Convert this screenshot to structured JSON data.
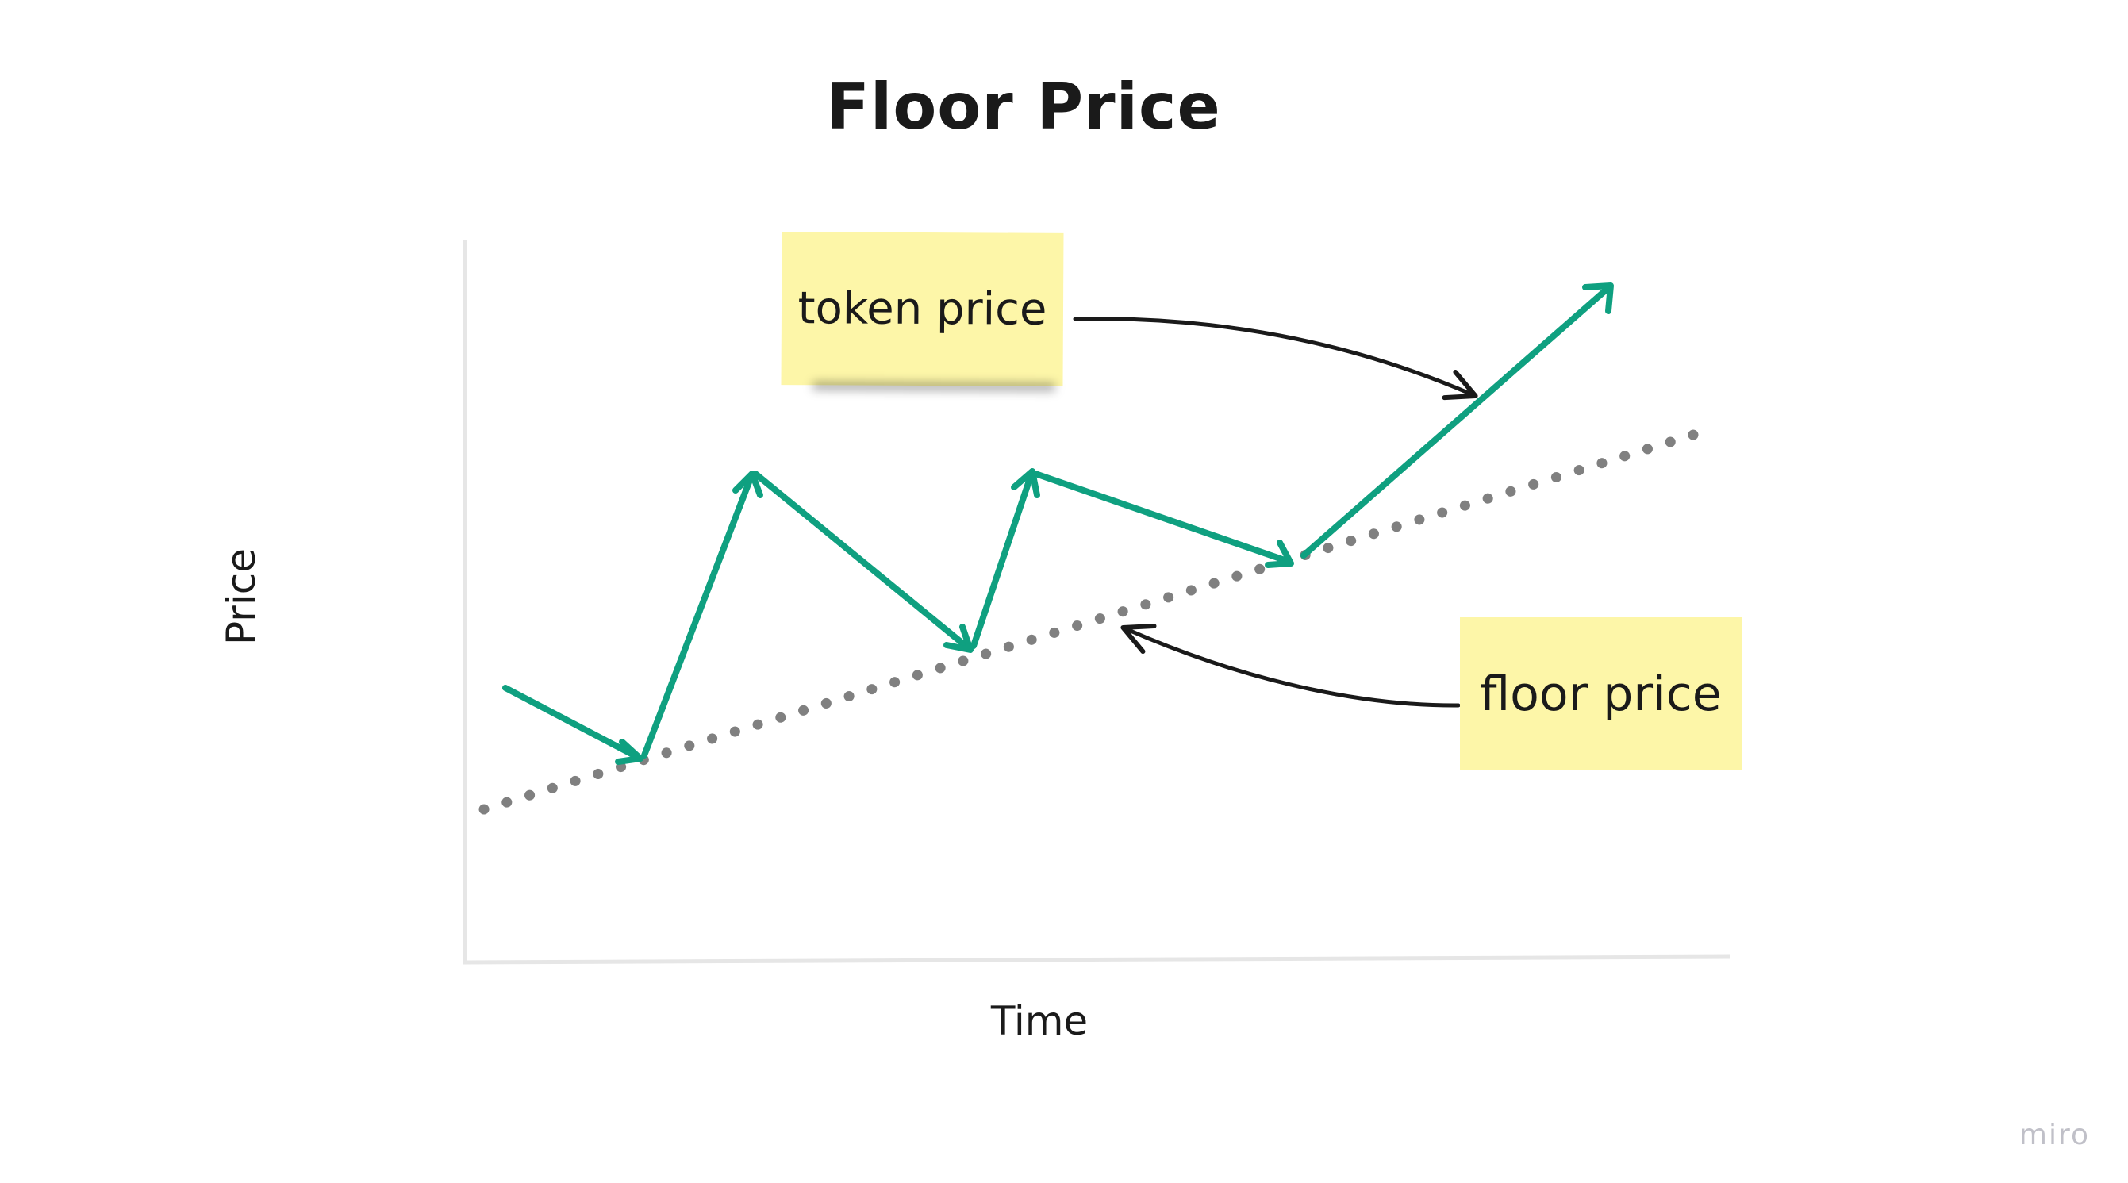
{
  "title": "Floor Price",
  "axes": {
    "x_label": "Time",
    "y_label": "Price"
  },
  "stickies": {
    "token_price": "token price",
    "floor_price": "floor price"
  },
  "brand": "miro",
  "colors": {
    "token_line": "#0fa080",
    "floor_line": "#808080",
    "sticky": "#fdf6a8",
    "axis": "#e6e6e6",
    "arrow": "#1a1a1a"
  }
}
